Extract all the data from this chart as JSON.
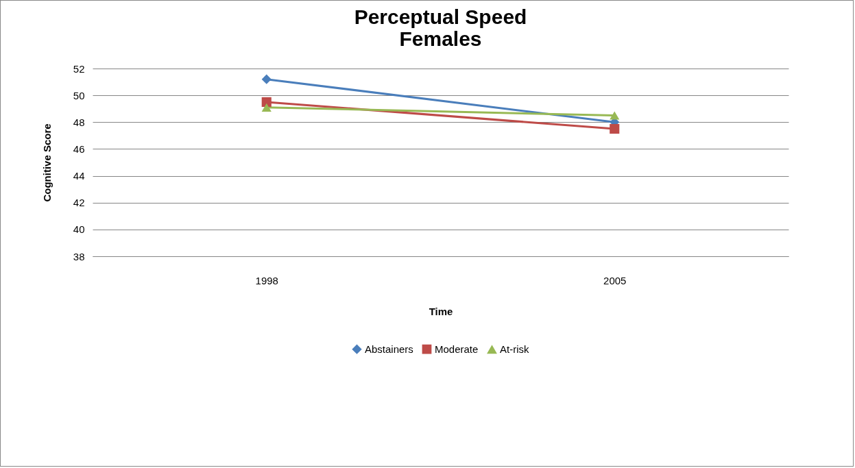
{
  "chart_data": {
    "type": "line",
    "title": "Perceptual Speed\nFemales",
    "xlabel": "Time",
    "ylabel": "Cognitive Score",
    "categories": [
      "1998",
      "2005"
    ],
    "series": [
      {
        "name": "Abstainers",
        "color": "#4a7ebb",
        "marker": "diamond",
        "values": [
          51.2,
          48.0
        ]
      },
      {
        "name": "Moderate",
        "color": "#be4b48",
        "marker": "square",
        "values": [
          49.5,
          47.5
        ]
      },
      {
        "name": "At-risk",
        "color": "#98b954",
        "marker": "triangle",
        "values": [
          49.1,
          48.5
        ]
      }
    ],
    "ylim": [
      38,
      52
    ],
    "yticks": [
      38,
      40,
      42,
      44,
      46,
      48,
      50,
      52
    ],
    "grid": "y",
    "legend": "bottom"
  }
}
